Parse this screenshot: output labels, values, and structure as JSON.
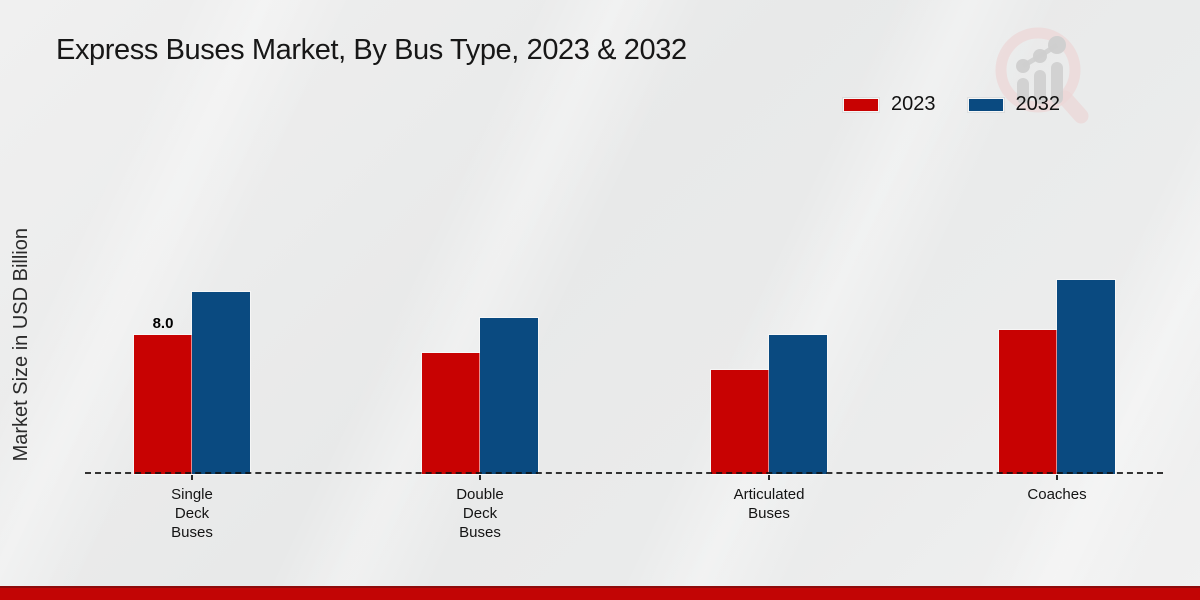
{
  "header": {
    "title": "Express Buses Market, By Bus Type, 2023 & 2032"
  },
  "y_axis": {
    "label": "Market Size in USD Billion"
  },
  "legend": {
    "items": [
      {
        "label": "2023",
        "color": "#c80202"
      },
      {
        "label": "2032",
        "color": "#0a4a80"
      }
    ]
  },
  "chart_data": {
    "type": "bar",
    "title": "Express Buses Market, By Bus Type, 2023 & 2032",
    "xlabel": "",
    "ylabel": "Market Size in USD Billion",
    "categories": [
      "Single Deck Buses",
      "Double Deck Buses",
      "Articulated Buses",
      "Coaches"
    ],
    "category_label_lines": [
      [
        "Single",
        "Deck",
        "Buses"
      ],
      [
        "Double",
        "Deck",
        "Buses"
      ],
      [
        "Articulated",
        "Buses"
      ],
      [
        "Coaches"
      ]
    ],
    "series": [
      {
        "name": "2023",
        "color": "#c80202",
        "values": [
          8.0,
          7.0,
          6.0,
          8.3
        ]
      },
      {
        "name": "2032",
        "color": "#0a4a80",
        "values": [
          10.5,
          9.0,
          8.0,
          11.2
        ]
      }
    ],
    "ylim": [
      0,
      17
    ],
    "grid": false,
    "y_ticks_shown": false,
    "legend_position": "top-right",
    "axis_style": "dashed-baseline-only",
    "data_labels": [
      {
        "series": "2023",
        "category": "Single Deck Buses",
        "text": "8.0"
      }
    ]
  },
  "footer": {
    "accent_color": "#c20505"
  },
  "watermark": {
    "icon": "magnifier-bar-chart-logo"
  }
}
